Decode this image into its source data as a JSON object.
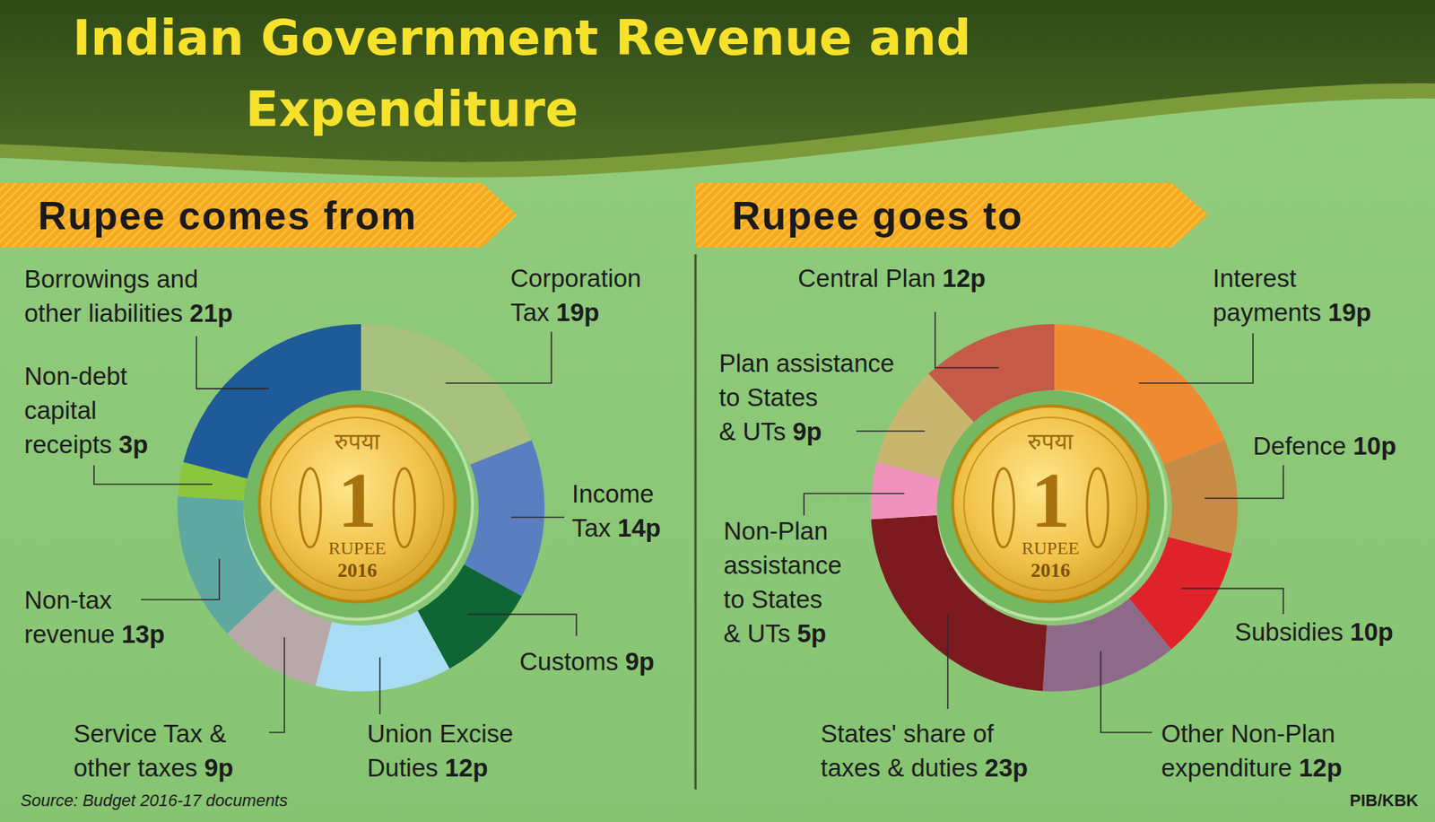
{
  "title": "Indian Government Revenue and Expenditure",
  "source": "Source: Budget 2016-17 documents",
  "credit": "PIB/KBK",
  "coin": {
    "script": "रुपया",
    "denomination": "1",
    "label": "RUPEE",
    "year": "2016"
  },
  "chart_data": [
    {
      "type": "pie",
      "title": "Rupee comes from",
      "categories": [
        "Corporation Tax",
        "Income Tax",
        "Customs",
        "Union Excise Duties",
        "Service Tax & other taxes",
        "Non-tax revenue",
        "Non-debt capital receipts",
        "Borrowings and other liabilities"
      ],
      "values": [
        19,
        14,
        9,
        12,
        9,
        13,
        3,
        21
      ],
      "value_labels": [
        "19p",
        "14p",
        "9p",
        "12p",
        "9p",
        "13p",
        "3p",
        "21p"
      ],
      "colors": [
        "#a9c17f",
        "#5a7fc0",
        "#0d6633",
        "#a9dcf5",
        "#b9a8aa",
        "#5fa8a1",
        "#8cc63f",
        "#1f5a99"
      ],
      "data_labels": true
    },
    {
      "type": "pie",
      "title": "Rupee goes to",
      "categories": [
        "Interest payments",
        "Defence",
        "Subsidies",
        "Other Non-Plan expenditure",
        "States' share of taxes & duties",
        "Non-Plan assistance to States & UTs",
        "Plan assistance to States & UTs",
        "Central Plan"
      ],
      "values": [
        19,
        10,
        10,
        12,
        23,
        5,
        9,
        12
      ],
      "value_labels": [
        "19p",
        "10p",
        "10p",
        "12p",
        "23p",
        "5p",
        "9p",
        "12p"
      ],
      "colors": [
        "#f08a32",
        "#c68c45",
        "#e0232a",
        "#8e6a8a",
        "#7d1a20",
        "#f093bc",
        "#c9b66e",
        "#c55a48"
      ],
      "data_labels": true
    }
  ]
}
